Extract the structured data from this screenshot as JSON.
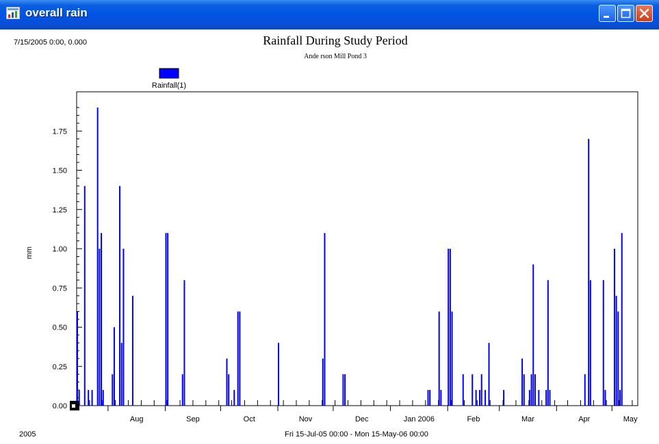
{
  "window": {
    "title": "overall rain",
    "controls": [
      "minimize",
      "maximize",
      "close"
    ],
    "colors": {
      "titlebar": "#0054e3",
      "close": "#c6401c"
    }
  },
  "header": {
    "readout": "7/15/2005 0:00, 0.000",
    "year_label": "2005"
  },
  "chart_data": {
    "type": "bar",
    "title": "Rainfall During Study Period",
    "subtitle": "Ande rson Mill Pond 3",
    "xlabel": "Fri 15-Jul-05 00:00 - Mon 15-May-06 00:00",
    "ylabel": "mm",
    "xlim": [
      "2005-07-15",
      "2006-05-15"
    ],
    "ylim": [
      0,
      2.0
    ],
    "y_ticks": [
      "0.00",
      "0.25",
      "0.50",
      "0.75",
      "1.00",
      "1.25",
      "1.50",
      "1.75"
    ],
    "x_ticks": [
      "Aug",
      "Sep",
      "Oct",
      "Nov",
      "Dec",
      "Jan 2006",
      "Feb",
      "Mar",
      "Apr",
      "May"
    ],
    "legend": {
      "position": "top-left",
      "entries": [
        "Rainfall(1)"
      ]
    },
    "grid": false,
    "series": [
      {
        "name": "Rainfall(1)",
        "color": "#0000ff",
        "points": [
          {
            "x": "2005-07-15",
            "y": 0.6
          },
          {
            "x": "2005-07-16",
            "y": 0.1
          },
          {
            "x": "2005-07-19",
            "y": 1.4
          },
          {
            "x": "2005-07-21",
            "y": 0.1
          },
          {
            "x": "2005-07-23",
            "y": 0.1
          },
          {
            "x": "2005-07-26",
            "y": 1.9
          },
          {
            "x": "2005-07-27",
            "y": 1.0
          },
          {
            "x": "2005-07-28",
            "y": 1.1
          },
          {
            "x": "2005-07-29",
            "y": 0.1
          },
          {
            "x": "2005-08-03",
            "y": 0.2
          },
          {
            "x": "2005-08-04",
            "y": 0.5
          },
          {
            "x": "2005-08-07",
            "y": 1.4
          },
          {
            "x": "2005-08-08",
            "y": 0.4
          },
          {
            "x": "2005-08-09",
            "y": 1.0
          },
          {
            "x": "2005-08-14",
            "y": 0.7
          },
          {
            "x": "2005-09-01",
            "y": 1.1
          },
          {
            "x": "2005-09-02",
            "y": 1.1
          },
          {
            "x": "2005-09-10",
            "y": 0.2
          },
          {
            "x": "2005-09-11",
            "y": 0.8
          },
          {
            "x": "2005-10-04",
            "y": 0.3
          },
          {
            "x": "2005-10-05",
            "y": 0.2
          },
          {
            "x": "2005-10-08",
            "y": 0.1
          },
          {
            "x": "2005-10-10",
            "y": 0.6
          },
          {
            "x": "2005-10-11",
            "y": 0.6
          },
          {
            "x": "2005-11-01",
            "y": 0.4
          },
          {
            "x": "2005-11-25",
            "y": 0.3
          },
          {
            "x": "2005-11-26",
            "y": 1.1
          },
          {
            "x": "2005-12-06",
            "y": 0.2
          },
          {
            "x": "2005-12-07",
            "y": 0.2
          },
          {
            "x": "2006-01-21",
            "y": 0.1
          },
          {
            "x": "2006-01-22",
            "y": 0.1
          },
          {
            "x": "2006-01-27",
            "y": 0.6
          },
          {
            "x": "2006-01-28",
            "y": 0.1
          },
          {
            "x": "2006-02-01",
            "y": 1.0
          },
          {
            "x": "2006-02-02",
            "y": 1.0
          },
          {
            "x": "2006-02-03",
            "y": 0.6
          },
          {
            "x": "2006-02-09",
            "y": 0.2
          },
          {
            "x": "2006-02-14",
            "y": 0.2
          },
          {
            "x": "2006-02-16",
            "y": 0.1
          },
          {
            "x": "2006-02-18",
            "y": 0.1
          },
          {
            "x": "2006-02-19",
            "y": 0.2
          },
          {
            "x": "2006-02-21",
            "y": 0.1
          },
          {
            "x": "2006-02-23",
            "y": 0.4
          },
          {
            "x": "2006-03-03",
            "y": 0.1
          },
          {
            "x": "2006-03-13",
            "y": 0.3
          },
          {
            "x": "2006-03-14",
            "y": 0.2
          },
          {
            "x": "2006-03-17",
            "y": 0.1
          },
          {
            "x": "2006-03-18",
            "y": 0.2
          },
          {
            "x": "2006-03-19",
            "y": 0.9
          },
          {
            "x": "2006-03-20",
            "y": 0.2
          },
          {
            "x": "2006-03-22",
            "y": 0.1
          },
          {
            "x": "2006-03-26",
            "y": 0.1
          },
          {
            "x": "2006-03-27",
            "y": 0.8
          },
          {
            "x": "2006-03-28",
            "y": 0.1
          },
          {
            "x": "2006-04-16",
            "y": 0.2
          },
          {
            "x": "2006-04-18",
            "y": 1.7
          },
          {
            "x": "2006-04-19",
            "y": 0.8
          },
          {
            "x": "2006-04-26",
            "y": 0.8
          },
          {
            "x": "2006-04-27",
            "y": 0.1
          },
          {
            "x": "2006-05-02",
            "y": 1.0
          },
          {
            "x": "2006-05-03",
            "y": 0.7
          },
          {
            "x": "2006-05-04",
            "y": 0.6
          },
          {
            "x": "2006-05-05",
            "y": 0.1
          },
          {
            "x": "2006-05-06",
            "y": 1.1
          }
        ]
      }
    ]
  }
}
